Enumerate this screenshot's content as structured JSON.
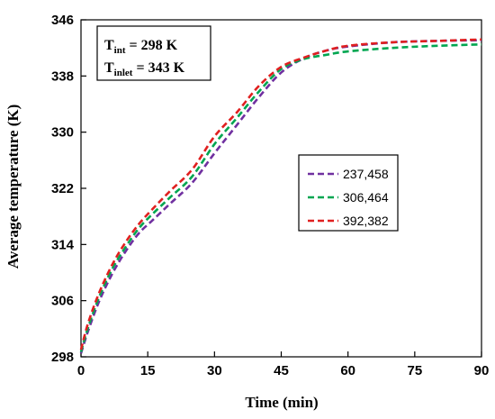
{
  "chart_data": {
    "type": "line",
    "xlabel": "Time (min)",
    "ylabel": "Average temperature (K)",
    "xlim": [
      0,
      90
    ],
    "ylim": [
      298,
      346
    ],
    "xticks": [
      "0",
      "15",
      "30",
      "45",
      "60",
      "75",
      "90"
    ],
    "yticks": [
      "298",
      "306",
      "314",
      "322",
      "330",
      "338",
      "346"
    ],
    "grid": false,
    "legend_placement": "center-right",
    "annotation": {
      "line1_main": "T",
      "line1_sub": "int",
      "line1_rest": " = 298 K",
      "line2_main": "T",
      "line2_sub": "inlet",
      "line2_rest": " = 343 K"
    },
    "series": [
      {
        "name": "237,458",
        "color": "#7030A0",
        "x": [
          0,
          1.5,
          4,
          7,
          10,
          13,
          16,
          20,
          25,
          30,
          35,
          40,
          45,
          50,
          55,
          60,
          70,
          80,
          90
        ],
        "y": [
          298.5,
          301.5,
          305.8,
          309.8,
          313.0,
          315.6,
          317.4,
          319.8,
          322.8,
          327.0,
          331.0,
          335.0,
          338.5,
          340.5,
          341.6,
          342.2,
          342.8,
          343.0,
          343.1
        ]
      },
      {
        "name": "306,464",
        "color": "#00A651",
        "x": [
          0,
          1.5,
          4,
          7,
          10,
          13,
          16,
          20,
          25,
          30,
          35,
          40,
          45,
          50,
          55,
          60,
          70,
          80,
          90
        ],
        "y": [
          298.7,
          302.0,
          306.4,
          310.5,
          313.6,
          316.3,
          318.3,
          320.7,
          323.7,
          328.3,
          332.0,
          335.8,
          339.0,
          340.4,
          341.0,
          341.5,
          342.0,
          342.3,
          342.5
        ]
      },
      {
        "name": "392,382",
        "color": "#E02020",
        "x": [
          0,
          1.5,
          4,
          7,
          10,
          13,
          16,
          20,
          25,
          30,
          35,
          40,
          45,
          50,
          55,
          60,
          70,
          80,
          90
        ],
        "y": [
          299.0,
          302.6,
          307.0,
          311.1,
          314.3,
          316.9,
          319.0,
          321.6,
          324.7,
          329.4,
          332.8,
          336.6,
          339.3,
          340.6,
          341.6,
          342.3,
          342.8,
          343.0,
          343.2
        ]
      }
    ]
  }
}
